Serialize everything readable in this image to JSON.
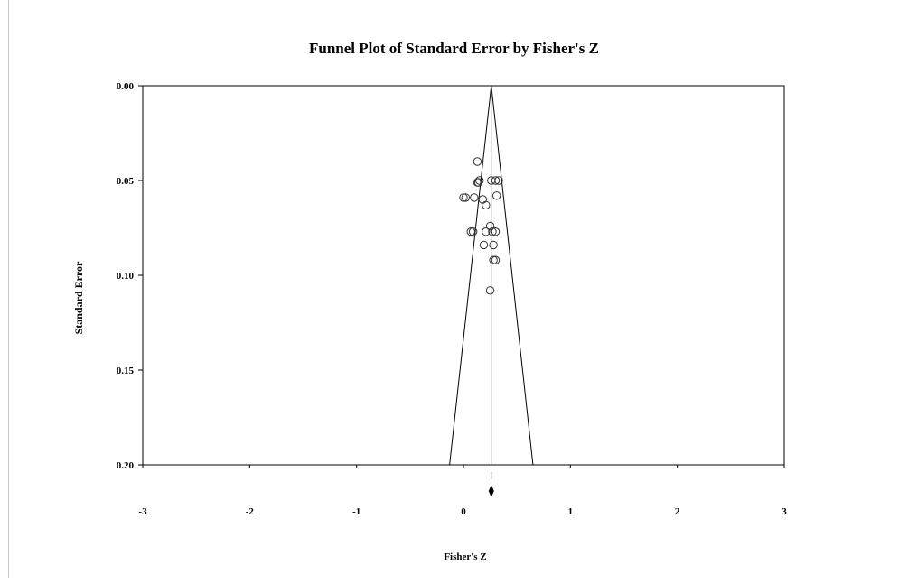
{
  "chart_data": {
    "type": "scatter",
    "title": "Funnel Plot of Standard Error by Fisher's Z",
    "xlabel": "Fisher's Z",
    "ylabel": "Standard Error",
    "xlim": [
      -3,
      3
    ],
    "ylim": [
      0.2,
      0.0
    ],
    "y_axis_inverted": true,
    "x_ticks": [
      "-3",
      "-2",
      "-1",
      "0",
      "1",
      "2",
      "3"
    ],
    "y_ticks": [
      "0.00",
      "0.05",
      "0.10",
      "0.15",
      "0.20"
    ],
    "grid": false,
    "summary_effect": 0.26,
    "funnel": {
      "apex": [
        0.26,
        0.0
      ],
      "base_left": [
        -0.13,
        0.2
      ],
      "base_right": [
        0.65,
        0.2
      ]
    },
    "studies": [
      [
        0.13,
        0.04
      ],
      [
        0.13,
        0.051
      ],
      [
        0.14,
        0.051
      ],
      [
        0.15,
        0.05
      ],
      [
        0.26,
        0.05
      ],
      [
        0.3,
        0.05
      ],
      [
        0.33,
        0.05
      ],
      [
        0.0,
        0.059
      ],
      [
        0.02,
        0.059
      ],
      [
        0.1,
        0.059
      ],
      [
        0.18,
        0.06
      ],
      [
        0.31,
        0.058
      ],
      [
        0.21,
        0.063
      ],
      [
        0.25,
        0.074
      ],
      [
        0.07,
        0.077
      ],
      [
        0.09,
        0.077
      ],
      [
        0.21,
        0.077
      ],
      [
        0.27,
        0.077
      ],
      [
        0.3,
        0.077
      ],
      [
        0.19,
        0.084
      ],
      [
        0.28,
        0.084
      ],
      [
        0.28,
        0.092
      ],
      [
        0.3,
        0.092
      ],
      [
        0.25,
        0.108
      ]
    ]
  }
}
